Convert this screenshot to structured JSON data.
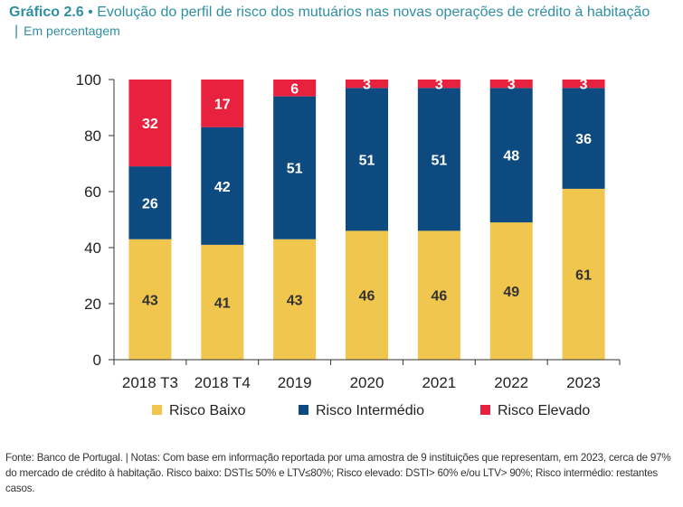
{
  "header": {
    "chart_number": "Gráfico 2.6",
    "bullet": "•",
    "title": "Evolução do perfil de risco dos mutuários nas novas operações de crédito à habitação",
    "separator": "|",
    "subtitle": "Em percentagem"
  },
  "chart_data": {
    "type": "bar",
    "stacked": true,
    "categories": [
      "2018 T3",
      "2018 T4",
      "2019",
      "2020",
      "2021",
      "2022",
      "2023"
    ],
    "series": [
      {
        "name": "Risco Baixo",
        "values": [
          43,
          41,
          43,
          46,
          46,
          49,
          61
        ],
        "color": "#f0c64f",
        "label_color": "#333333"
      },
      {
        "name": "Risco Intermédio",
        "values": [
          26,
          42,
          51,
          51,
          51,
          48,
          36
        ],
        "color": "#0d4a80",
        "label_color": "#ffffff"
      },
      {
        "name": "Risco Elevado",
        "values": [
          32,
          17,
          6,
          3,
          3,
          3,
          3
        ],
        "color": "#e8213e",
        "label_color": "#ffffff"
      }
    ],
    "ylim": [
      0,
      100
    ],
    "yticks": [
      0,
      20,
      40,
      60,
      80,
      100
    ],
    "xlabel": "",
    "ylabel": "",
    "legend_position": "bottom"
  },
  "footnote": "Fonte: Banco de Portugal. | Notas: Com base em informação reportada por uma amostra de 9 instituições que representam, em 2023, cerca de 97% do mercado de crédito à habitação. Risco baixo: DSTI≤ 50% e LTV≤80%; Risco elevado: DSTI> 60% e/ou LTV> 90%; Risco intermédio: restantes casos."
}
